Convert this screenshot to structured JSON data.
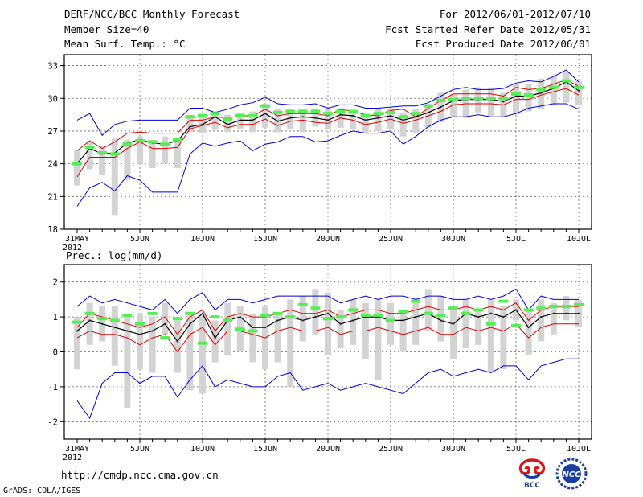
{
  "header": {
    "title": "DERF/NCC/BCC Monthly Forecast",
    "member_size": "Member Size=40",
    "variable": "Mean Surf. Temp.: °C",
    "period": "For 2012/06/01-2012/07/10",
    "started": "Fcst Started Refer Date 2012/05/31",
    "produced": "Fcst Produced Date 2012/06/01"
  },
  "footer": {
    "url": "http://cmdp.ncc.cma.gov.cn",
    "credit": "GrADS: COLA/IGES",
    "logo_bcc": "BCC",
    "logo_ncc": "NCC"
  },
  "colors": {
    "envelope": "#0000dd",
    "spread": "#dd0000",
    "mean": "#000000",
    "median": "#55ee55",
    "box": "#d3d3d3",
    "grid": "#666666"
  },
  "chart_data": [
    {
      "type": "line",
      "title": "Mean Surf. Temp.: °C",
      "x_tick_labels": [
        "31MAY",
        "5JUN",
        "10JUN",
        "15JUN",
        "20JUN",
        "25JUN",
        "30JUN",
        "5JUL",
        "10JUL"
      ],
      "x_year_label": "2012",
      "x_range_days": [
        0,
        40
      ],
      "ylim": [
        18,
        34
      ],
      "yticks": [
        18,
        21,
        24,
        27,
        30,
        33
      ],
      "series": [
        {
          "name": "ensemble max",
          "values": [
            28.0,
            28.6,
            26.6,
            27.6,
            27.9,
            28.0,
            28.0,
            28.0,
            28.0,
            29.1,
            29.1,
            28.7,
            29.0,
            29.4,
            29.6,
            30.1,
            29.5,
            29.4,
            29.4,
            29.5,
            29.1,
            29.4,
            29.4,
            29.1,
            29.1,
            29.2,
            29.3,
            29.3,
            29.6,
            30.2,
            30.8,
            31.0,
            30.8,
            30.8,
            30.9,
            31.4,
            31.6,
            31.5,
            32.0,
            32.6,
            31.5
          ]
        },
        {
          "name": "upper spread",
          "values": [
            25.2,
            26.1,
            25.4,
            26.0,
            26.8,
            26.9,
            26.8,
            26.8,
            26.8,
            28.0,
            28.0,
            28.3,
            28.2,
            28.4,
            28.4,
            29.0,
            28.4,
            28.6,
            28.6,
            28.6,
            28.4,
            29.0,
            28.8,
            28.5,
            28.4,
            28.9,
            29.0,
            28.3,
            29.1,
            29.8,
            30.4,
            30.4,
            30.4,
            30.4,
            30.2,
            31.0,
            30.8,
            30.9,
            31.3,
            31.7,
            31.1
          ]
        },
        {
          "name": "ensemble mean",
          "values": [
            24.0,
            25.4,
            24.9,
            25.0,
            25.9,
            26.2,
            25.9,
            25.8,
            26.1,
            27.4,
            27.6,
            28.3,
            27.6,
            28.0,
            28.0,
            28.6,
            27.9,
            28.2,
            28.3,
            28.2,
            28.0,
            28.5,
            28.4,
            28.0,
            28.2,
            28.4,
            28.0,
            28.3,
            28.7,
            29.2,
            29.8,
            29.9,
            29.9,
            29.9,
            29.7,
            30.2,
            30.2,
            30.5,
            30.9,
            31.5,
            30.7
          ]
        },
        {
          "name": "lower spread",
          "values": [
            22.8,
            24.6,
            24.6,
            24.6,
            25.4,
            26.0,
            25.4,
            25.4,
            25.5,
            27.2,
            27.5,
            27.8,
            27.3,
            27.6,
            27.6,
            28.1,
            27.5,
            27.9,
            28.0,
            27.8,
            27.7,
            28.2,
            28.0,
            27.6,
            27.8,
            28.1,
            27.7,
            28.0,
            28.4,
            28.8,
            29.4,
            29.5,
            29.5,
            29.5,
            29.4,
            29.9,
            29.9,
            30.3,
            30.6,
            30.9,
            30.3
          ]
        },
        {
          "name": "ensemble min",
          "values": [
            20.1,
            21.8,
            22.3,
            21.5,
            22.9,
            22.5,
            21.4,
            21.4,
            21.4,
            24.9,
            25.9,
            25.6,
            25.9,
            26.1,
            25.2,
            25.8,
            26.0,
            26.5,
            26.5,
            26.0,
            26.1,
            26.6,
            27.0,
            26.8,
            26.8,
            27.0,
            25.8,
            26.5,
            27.4,
            28.0,
            28.3,
            28.3,
            28.5,
            28.3,
            28.3,
            28.6,
            29.1,
            29.3,
            29.5,
            29.5,
            29.0
          ]
        },
        {
          "name": "ensemble median",
          "values": [
            24.0,
            25.5,
            25.0,
            24.9,
            25.8,
            26.1,
            26.0,
            25.8,
            26.2,
            28.3,
            28.4,
            28.6,
            28.1,
            28.4,
            28.4,
            29.3,
            28.7,
            28.8,
            28.8,
            28.8,
            28.6,
            28.8,
            28.8,
            28.4,
            28.6,
            28.7,
            28.3,
            28.6,
            29.3,
            29.8,
            29.9,
            30.0,
            30.0,
            30.0,
            30.0,
            30.4,
            30.3,
            30.8,
            31.0,
            31.6,
            31.0
          ]
        }
      ],
      "box_ranges": [
        [
          22.0,
          25.2
        ],
        [
          23.5,
          26.0
        ],
        [
          23.0,
          25.6
        ],
        [
          19.3,
          26.3
        ],
        [
          22.5,
          26.2
        ],
        [
          24.0,
          26.5
        ],
        [
          23.6,
          26.2
        ],
        [
          24.0,
          26.5
        ],
        [
          23.6,
          26.4
        ],
        [
          26.9,
          28.5
        ],
        [
          26.8,
          28.6
        ],
        [
          27.1,
          28.8
        ],
        [
          26.9,
          28.5
        ],
        [
          27.2,
          28.7
        ],
        [
          26.9,
          28.8
        ],
        [
          27.3,
          29.5
        ],
        [
          26.9,
          29.0
        ],
        [
          27.2,
          29.0
        ],
        [
          26.9,
          29.0
        ],
        [
          27.4,
          29.0
        ],
        [
          27.1,
          29.0
        ],
        [
          27.3,
          29.1
        ],
        [
          27.2,
          28.9
        ],
        [
          26.8,
          28.6
        ],
        [
          27.0,
          29.0
        ],
        [
          27.2,
          29.0
        ],
        [
          26.5,
          28.7
        ],
        [
          26.8,
          29.0
        ],
        [
          27.3,
          29.5
        ],
        [
          27.8,
          30.5
        ],
        [
          28.3,
          30.4
        ],
        [
          28.2,
          30.8
        ],
        [
          28.7,
          31.0
        ],
        [
          28.4,
          31.0
        ],
        [
          28.3,
          30.5
        ],
        [
          28.5,
          31.3
        ],
        [
          28.8,
          31.3
        ],
        [
          29.0,
          31.8
        ],
        [
          29.4,
          32.0
        ],
        [
          29.6,
          32.4
        ],
        [
          29.4,
          31.6
        ]
      ]
    },
    {
      "type": "line",
      "title": "Prec.: log(mm/d)",
      "x_tick_labels": [
        "31MAY",
        "5JUN",
        "10JUN",
        "15JUN",
        "20JUN",
        "25JUN",
        "30JUN",
        "5JUL",
        "10JUL"
      ],
      "x_year_label": "2012",
      "x_range_days": [
        0,
        40
      ],
      "ylim": [
        -2.5,
        2.5
      ],
      "yticks": [
        -2,
        -1,
        0,
        1,
        2
      ],
      "series": [
        {
          "name": "ensemble max",
          "values": [
            1.3,
            1.6,
            1.4,
            1.5,
            1.4,
            1.3,
            1.2,
            1.5,
            1.1,
            1.5,
            1.7,
            1.2,
            1.5,
            1.5,
            1.4,
            1.5,
            1.6,
            1.6,
            1.6,
            1.6,
            1.6,
            1.4,
            1.5,
            1.6,
            1.5,
            1.6,
            1.6,
            1.5,
            1.6,
            1.6,
            1.5,
            1.5,
            1.6,
            1.5,
            1.6,
            1.8,
            1.2,
            1.6,
            1.5,
            1.5,
            1.5
          ]
        },
        {
          "name": "upper spread",
          "values": [
            0.7,
            1.1,
            1.0,
            0.9,
            0.8,
            0.7,
            0.8,
            1.0,
            0.5,
            1.0,
            1.2,
            0.6,
            1.0,
            1.1,
            1.0,
            1.0,
            1.1,
            1.2,
            1.1,
            1.1,
            1.2,
            1.0,
            1.1,
            1.2,
            1.2,
            1.1,
            1.1,
            1.2,
            1.3,
            1.2,
            1.2,
            1.3,
            1.2,
            1.3,
            1.2,
            1.4,
            0.9,
            1.2,
            1.3,
            1.3,
            1.3
          ]
        },
        {
          "name": "ensemble mean",
          "values": [
            0.6,
            0.9,
            0.8,
            0.7,
            0.6,
            0.5,
            0.6,
            0.8,
            0.3,
            0.8,
            1.1,
            0.4,
            0.9,
            1.0,
            0.7,
            0.7,
            0.9,
            1.0,
            0.9,
            1.0,
            1.1,
            0.8,
            0.9,
            1.0,
            1.0,
            0.9,
            0.9,
            1.0,
            1.1,
            0.9,
            0.8,
            1.1,
            1.0,
            1.1,
            1.0,
            1.2,
            0.7,
            1.0,
            1.1,
            1.1,
            1.1
          ]
        },
        {
          "name": "lower spread",
          "values": [
            0.4,
            0.6,
            0.5,
            0.5,
            0.4,
            0.2,
            0.4,
            0.5,
            0.0,
            0.5,
            0.7,
            0.2,
            0.6,
            0.6,
            0.5,
            0.4,
            0.6,
            0.7,
            0.6,
            0.6,
            0.7,
            0.5,
            0.6,
            0.6,
            0.7,
            0.6,
            0.5,
            0.6,
            0.7,
            0.5,
            0.5,
            0.7,
            0.6,
            0.7,
            0.6,
            0.8,
            0.4,
            0.7,
            0.8,
            0.8,
            0.8
          ]
        },
        {
          "name": "ensemble min",
          "values": [
            -1.4,
            -1.9,
            -0.9,
            -0.6,
            -0.6,
            -0.9,
            -0.7,
            -0.7,
            -1.3,
            -0.8,
            -0.4,
            -1.0,
            -0.8,
            -0.9,
            -1.0,
            -1.0,
            -0.7,
            -0.6,
            -1.1,
            -1.0,
            -0.9,
            -1.1,
            -1.0,
            -0.9,
            -1.0,
            -1.1,
            -1.2,
            -0.9,
            -0.6,
            -0.5,
            -0.7,
            -0.6,
            -0.5,
            -0.6,
            -0.4,
            -0.4,
            -0.8,
            -0.4,
            -0.3,
            -0.2,
            -0.2
          ]
        },
        {
          "name": "ensemble median",
          "values": [
            0.85,
            1.1,
            0.95,
            0.9,
            1.05,
            0.8,
            1.1,
            0.4,
            0.95,
            1.1,
            0.25,
            1.0,
            0.9,
            0.65,
            0.6,
            1.05,
            1.1,
            1.0,
            1.35,
            1.25,
            0.95,
            1.0,
            1.2,
            1.05,
            1.05,
            0.9,
            1.15,
            1.45,
            1.1,
            1.05,
            1.25,
            1.1,
            1.2,
            0.8,
            1.45,
            0.75,
            1.2,
            1.25,
            1.3,
            1.3,
            1.35
          ]
        }
      ],
      "box_ranges": [
        [
          -0.5,
          1.0
        ],
        [
          0.2,
          1.4
        ],
        [
          0.3,
          1.3
        ],
        [
          -0.4,
          1.3
        ],
        [
          -1.6,
          1.1
        ],
        [
          -0.5,
          1.1
        ],
        [
          -0.6,
          1.0
        ],
        [
          0.5,
          1.4
        ],
        [
          -0.6,
          0.9
        ],
        [
          -1.1,
          1.1
        ],
        [
          -1.2,
          1.1
        ],
        [
          -0.3,
          0.9
        ],
        [
          -0.1,
          1.4
        ],
        [
          0.0,
          1.3
        ],
        [
          -0.3,
          1.1
        ],
        [
          -0.5,
          1.3
        ],
        [
          -0.3,
          1.1
        ],
        [
          -1.0,
          1.5
        ],
        [
          0.3,
          1.6
        ],
        [
          0.5,
          1.8
        ],
        [
          -0.1,
          1.7
        ],
        [
          0.1,
          1.2
        ],
        [
          0.2,
          1.5
        ],
        [
          -0.2,
          1.4
        ],
        [
          -0.8,
          1.5
        ],
        [
          0.2,
          1.4
        ],
        [
          0.0,
          1.2
        ],
        [
          0.2,
          1.5
        ],
        [
          0.6,
          1.8
        ],
        [
          0.3,
          1.6
        ],
        [
          -0.2,
          1.3
        ],
        [
          0.1,
          1.5
        ],
        [
          0.2,
          1.2
        ],
        [
          -0.6,
          1.5
        ],
        [
          -0.5,
          1.3
        ],
        [
          0.9,
          1.5
        ],
        [
          -0.1,
          1.2
        ],
        [
          0.3,
          1.5
        ],
        [
          0.5,
          1.4
        ],
        [
          0.9,
          1.6
        ],
        [
          0.7,
          1.5
        ]
      ]
    }
  ]
}
